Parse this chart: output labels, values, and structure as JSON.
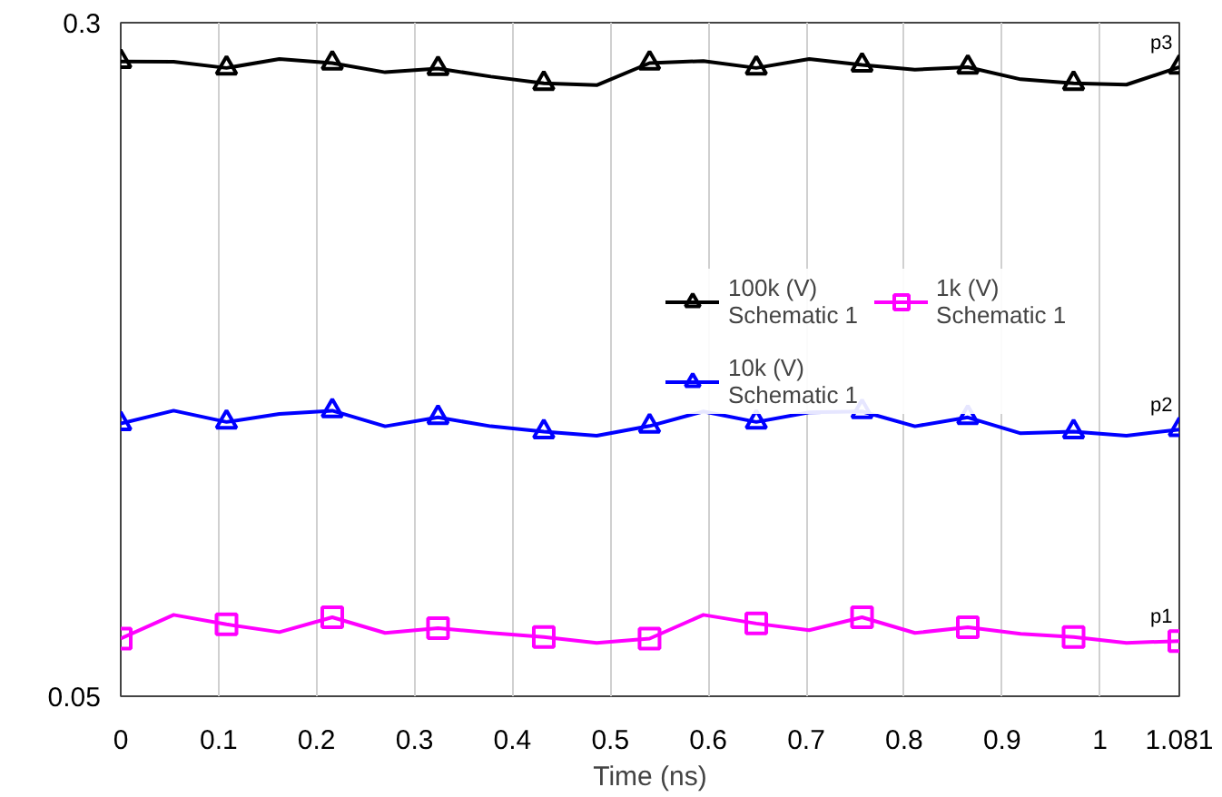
{
  "chart_data": {
    "type": "line",
    "xlabel": "Time (ns)",
    "xlim": [
      0,
      1.081
    ],
    "ylim": [
      0.05,
      0.3
    ],
    "xticks": [
      0,
      0.1,
      0.2,
      0.3,
      0.4,
      0.5,
      0.6,
      0.7,
      0.8,
      0.9,
      1,
      1.081
    ],
    "yticks": [
      0.05,
      0.3
    ],
    "grid": "x",
    "legend": "right",
    "x": [
      0,
      0.054,
      0.108,
      0.162,
      0.216,
      0.27,
      0.324,
      0.378,
      0.432,
      0.486,
      0.54,
      0.595,
      0.649,
      0.703,
      0.757,
      0.811,
      0.865,
      0.919,
      0.973,
      1.027,
      1.081
    ],
    "series": [
      {
        "name": "100k (V)\nSchematic 1",
        "color": "#000000",
        "marker": "triangle",
        "values": [
          0.2856,
          0.2855,
          0.2832,
          0.2865,
          0.285,
          0.2816,
          0.283,
          0.28,
          0.2775,
          0.2768,
          0.285,
          0.2858,
          0.2832,
          0.2865,
          0.2843,
          0.2826,
          0.2835,
          0.279,
          0.2775,
          0.277,
          0.2835
        ]
      },
      {
        "name": "10k (V)\nSchematic 1",
        "color": "#0000ff",
        "marker": "triangle",
        "values": [
          0.1512,
          0.156,
          0.1518,
          0.1548,
          0.156,
          0.1502,
          0.1535,
          0.1502,
          0.1482,
          0.1467,
          0.1503,
          0.1557,
          0.1518,
          0.1554,
          0.1557,
          0.1502,
          0.1535,
          0.1476,
          0.1482,
          0.1467,
          0.149
        ]
      },
      {
        "name": "1k (V)\nSchematic 1",
        "color": "#ff00ff",
        "marker": "square",
        "values": [
          0.0714,
          0.0802,
          0.0767,
          0.0738,
          0.0793,
          0.0735,
          0.0753,
          0.0735,
          0.072,
          0.0698,
          0.0714,
          0.0802,
          0.077,
          0.0745,
          0.0793,
          0.0735,
          0.0756,
          0.0732,
          0.072,
          0.0698,
          0.0705
        ]
      }
    ],
    "annotations": [
      {
        "text": "p3",
        "y": 0.2835
      },
      {
        "text": "p1",
        "y": 0.0705
      },
      {
        "text": "p2",
        "y": 0.149
      }
    ]
  }
}
